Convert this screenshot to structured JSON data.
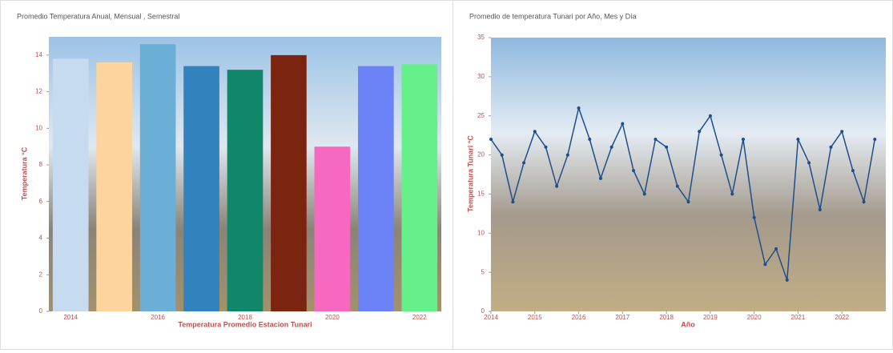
{
  "chart_data": [
    {
      "type": "bar",
      "title": "Promedio Temperatura Anual, Mensual , Semestral",
      "categories": [
        "2014",
        null,
        "2016",
        null,
        "2018",
        null,
        "2020",
        null,
        "2022"
      ],
      "values": [
        13.8,
        13.6,
        14.6,
        13.4,
        13.2,
        14.0,
        9.0,
        13.4,
        13.5
      ],
      "colors": [
        "#c6dbef",
        "#fdd49e",
        "#6baed6",
        "#3182bd",
        "#11876a",
        "#7b2410",
        "#f768c1",
        "#6b83f6",
        "#66f08a"
      ],
      "ylim": [
        0,
        15
      ],
      "yticks": [
        0,
        2,
        4,
        6,
        8,
        10,
        12,
        14
      ],
      "x_label": "Temperatura Promedio Estacion Tunari",
      "y_label": "Temperatura °C"
    },
    {
      "type": "line",
      "title": "Promedio de temperatura Tunari por Año, Mes y Día",
      "x": [
        2014.0,
        2014.25,
        2014.5,
        2014.75,
        2015.0,
        2015.25,
        2015.5,
        2015.75,
        2016.0,
        2016.25,
        2016.5,
        2016.75,
        2017.0,
        2017.25,
        2017.5,
        2017.75,
        2018.0,
        2018.25,
        2018.5,
        2018.75,
        2019.0,
        2019.25,
        2019.5,
        2019.75,
        2020.0,
        2020.25,
        2020.5,
        2020.75,
        2021.0,
        2021.25,
        2021.5,
        2021.75,
        2022.0,
        2022.25,
        2022.5,
        2022.75
      ],
      "series": [
        {
          "name": "Temperatura",
          "color": "#1f4e8c",
          "values": [
            22,
            20,
            14,
            19,
            23,
            21,
            16,
            20,
            26,
            22,
            17,
            21,
            24,
            18,
            15,
            22,
            21,
            16,
            14,
            23,
            25,
            20,
            15,
            22,
            12,
            6,
            8,
            4,
            22,
            19,
            13,
            21,
            23,
            18,
            14,
            22
          ]
        }
      ],
      "xlim": [
        2014,
        2023
      ],
      "xticks": [
        2014,
        2015,
        2016,
        2017,
        2018,
        2019,
        2020,
        2021,
        2022
      ],
      "ylim": [
        0,
        35
      ],
      "yticks": [
        0,
        5,
        10,
        15,
        20,
        25,
        30,
        35
      ],
      "x_label": "Año",
      "y_label": "Temperatura Tunari °C"
    }
  ]
}
